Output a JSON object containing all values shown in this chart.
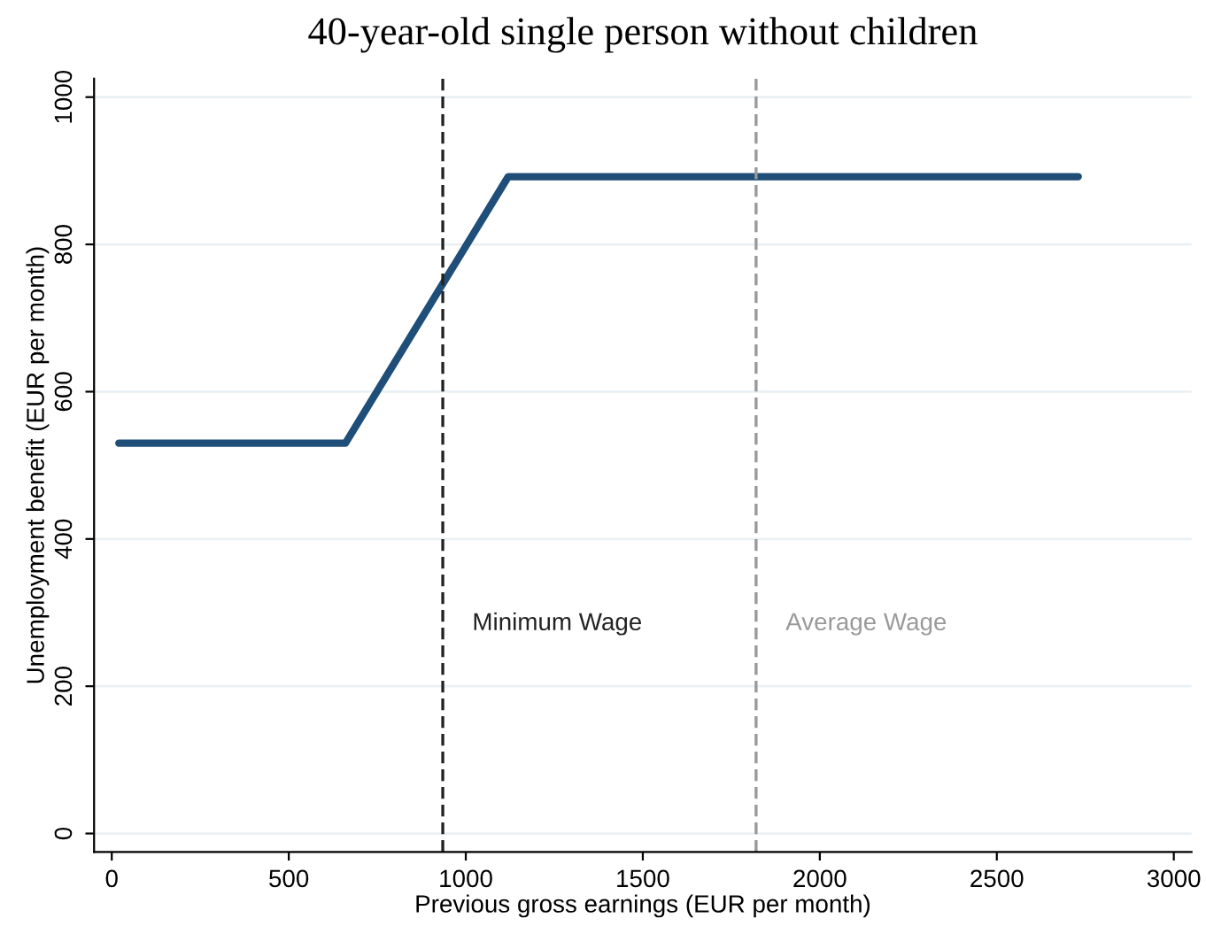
{
  "chart_data": {
    "type": "line",
    "title": "40-year-old single person without children",
    "xlabel": "Previous gross earnings (EUR per month)",
    "ylabel": "Unemployment benefit (EUR per month)",
    "x": [
      20,
      660,
      1120,
      2730
    ],
    "series": [
      {
        "color": "#1f4e79",
        "values": [
          530,
          530,
          892,
          892
        ]
      }
    ],
    "xlim": [
      -50,
      3050
    ],
    "ylim": [
      -25,
      1025
    ],
    "xticks": [
      0,
      500,
      1000,
      1500,
      2000,
      2500,
      3000
    ],
    "yticks": [
      0,
      200,
      400,
      600,
      800,
      1000
    ],
    "grid": "y",
    "line_style": "solid",
    "ref_lines": [
      {
        "axis": "x",
        "value": 935,
        "label": "Minimum Wage",
        "color": "#222222",
        "line_style": "dashed"
      },
      {
        "axis": "x",
        "value": 1820,
        "label": "Average Wage",
        "color": "#999999",
        "line_style": "dashed"
      }
    ]
  }
}
